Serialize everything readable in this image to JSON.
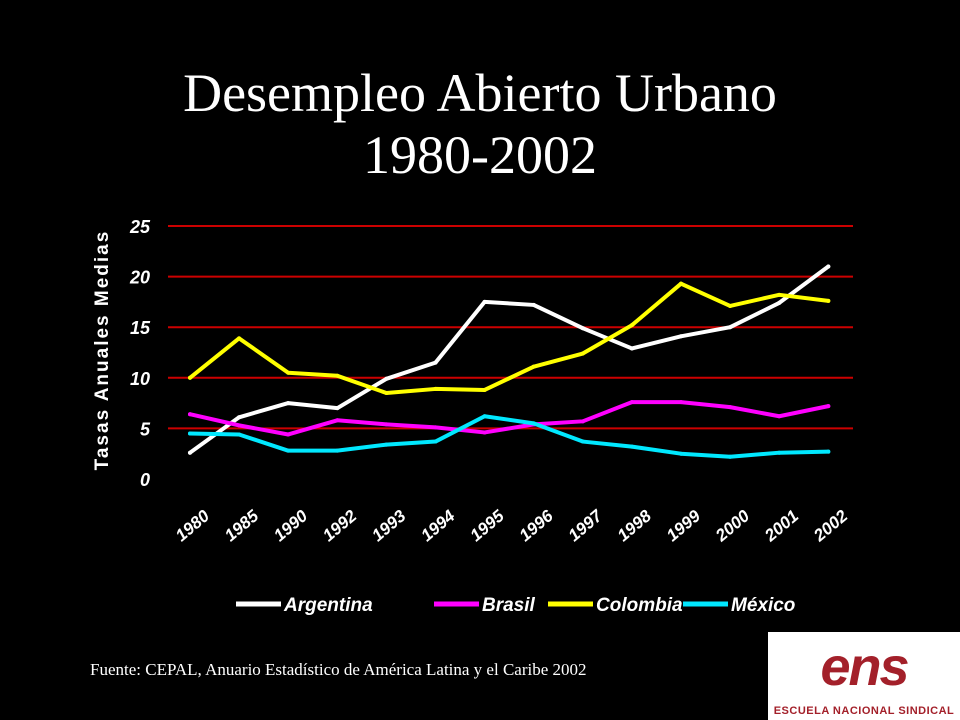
{
  "slide": {
    "title_line1": "Desempleo Abierto Urbano",
    "title_line2": "1980-2002",
    "source": "Fuente: CEPAL, Anuario Estadístico de América Latina y el Caribe 2002",
    "logo_text": "ens",
    "logo_tagline": "ESCUELA NACIONAL SINDICAL"
  },
  "colors": {
    "background": "#000000",
    "gridline": "#cc0000",
    "text": "#ffffff",
    "logo": "#a3202a"
  },
  "chart_data": {
    "type": "line",
    "title": "",
    "ylabel": "Tasas Anuales Medias",
    "xlabel": "",
    "ylim": [
      0,
      25
    ],
    "yticks": [
      0,
      5,
      10,
      15,
      20,
      25
    ],
    "grid": true,
    "legend_position": "bottom",
    "categories": [
      "1980",
      "1985",
      "1990",
      "1992",
      "1993",
      "1994",
      "1995",
      "1996",
      "1997",
      "1998",
      "1999",
      "2000",
      "2001",
      "2002"
    ],
    "series": [
      {
        "name": "Argentina",
        "color": "#ffffff",
        "values": [
          2.6,
          6.1,
          7.5,
          7.0,
          9.9,
          11.5,
          17.5,
          17.2,
          14.9,
          12.9,
          14.1,
          15.0,
          17.4,
          21.0
        ]
      },
      {
        "name": "Brasil",
        "color": "#ff00ff",
        "values": [
          6.4,
          5.3,
          4.4,
          5.8,
          5.4,
          5.1,
          4.6,
          5.4,
          5.7,
          7.6,
          7.6,
          7.1,
          6.2,
          7.2
        ]
      },
      {
        "name": "Colombia",
        "color": "#ffff00",
        "values": [
          10.0,
          13.9,
          10.5,
          10.2,
          8.5,
          8.9,
          8.8,
          11.1,
          12.4,
          15.2,
          19.3,
          17.1,
          18.2,
          17.6
        ]
      },
      {
        "name": "México",
        "color": "#00e8ff",
        "values": [
          4.5,
          4.4,
          2.8,
          2.8,
          3.4,
          3.7,
          6.2,
          5.5,
          3.7,
          3.2,
          2.5,
          2.2,
          2.6,
          2.7
        ]
      }
    ]
  }
}
